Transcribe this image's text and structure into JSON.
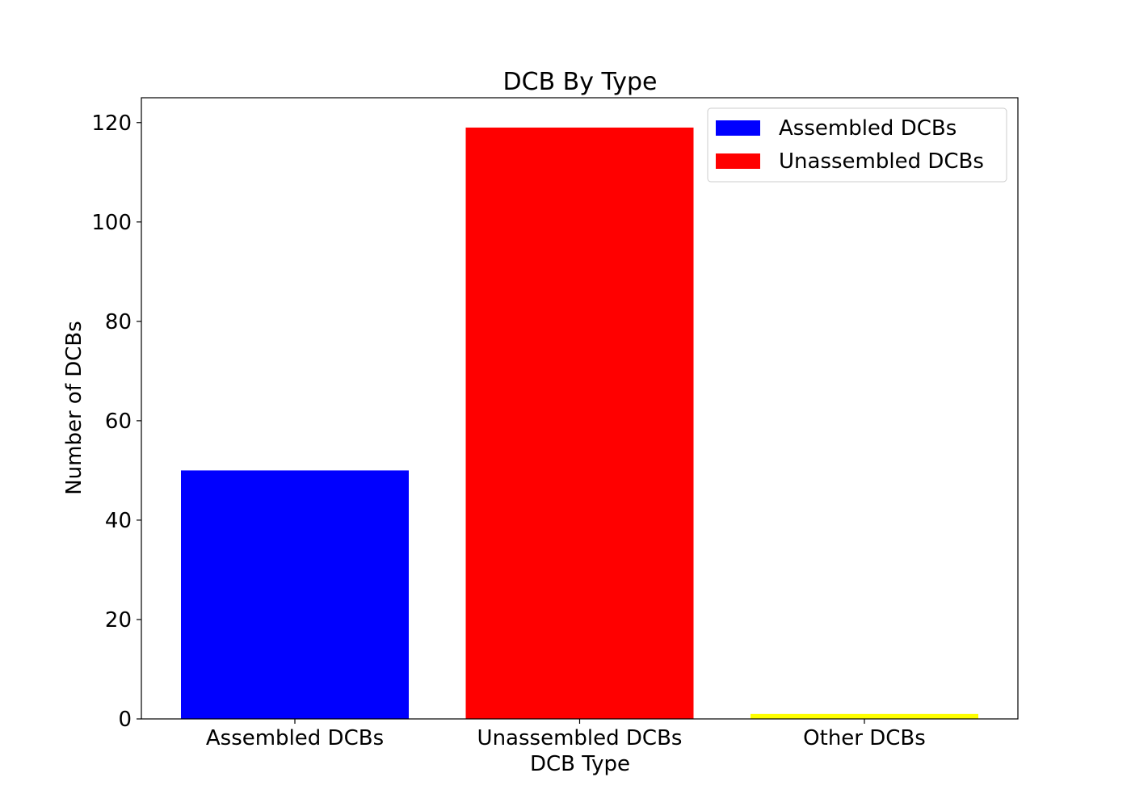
{
  "chart_data": {
    "type": "bar",
    "title": "DCB By Type",
    "xlabel": "DCB Type",
    "ylabel": "Number of DCBs",
    "categories": [
      "Assembled DCBs",
      "Unassembled DCBs",
      "Other DCBs"
    ],
    "values": [
      50,
      119,
      1
    ],
    "colors": [
      "#0000ff",
      "#ff0000",
      "#ffff00"
    ],
    "ylim": [
      0,
      125
    ],
    "yticks": [
      0,
      20,
      40,
      60,
      80,
      100,
      120
    ],
    "grid": false,
    "legend": {
      "placement": "top-right",
      "entries": [
        {
          "label": "Assembled DCBs",
          "color": "#0000ff"
        },
        {
          "label": "Unassembled DCBs",
          "color": "#ff0000"
        }
      ]
    }
  }
}
